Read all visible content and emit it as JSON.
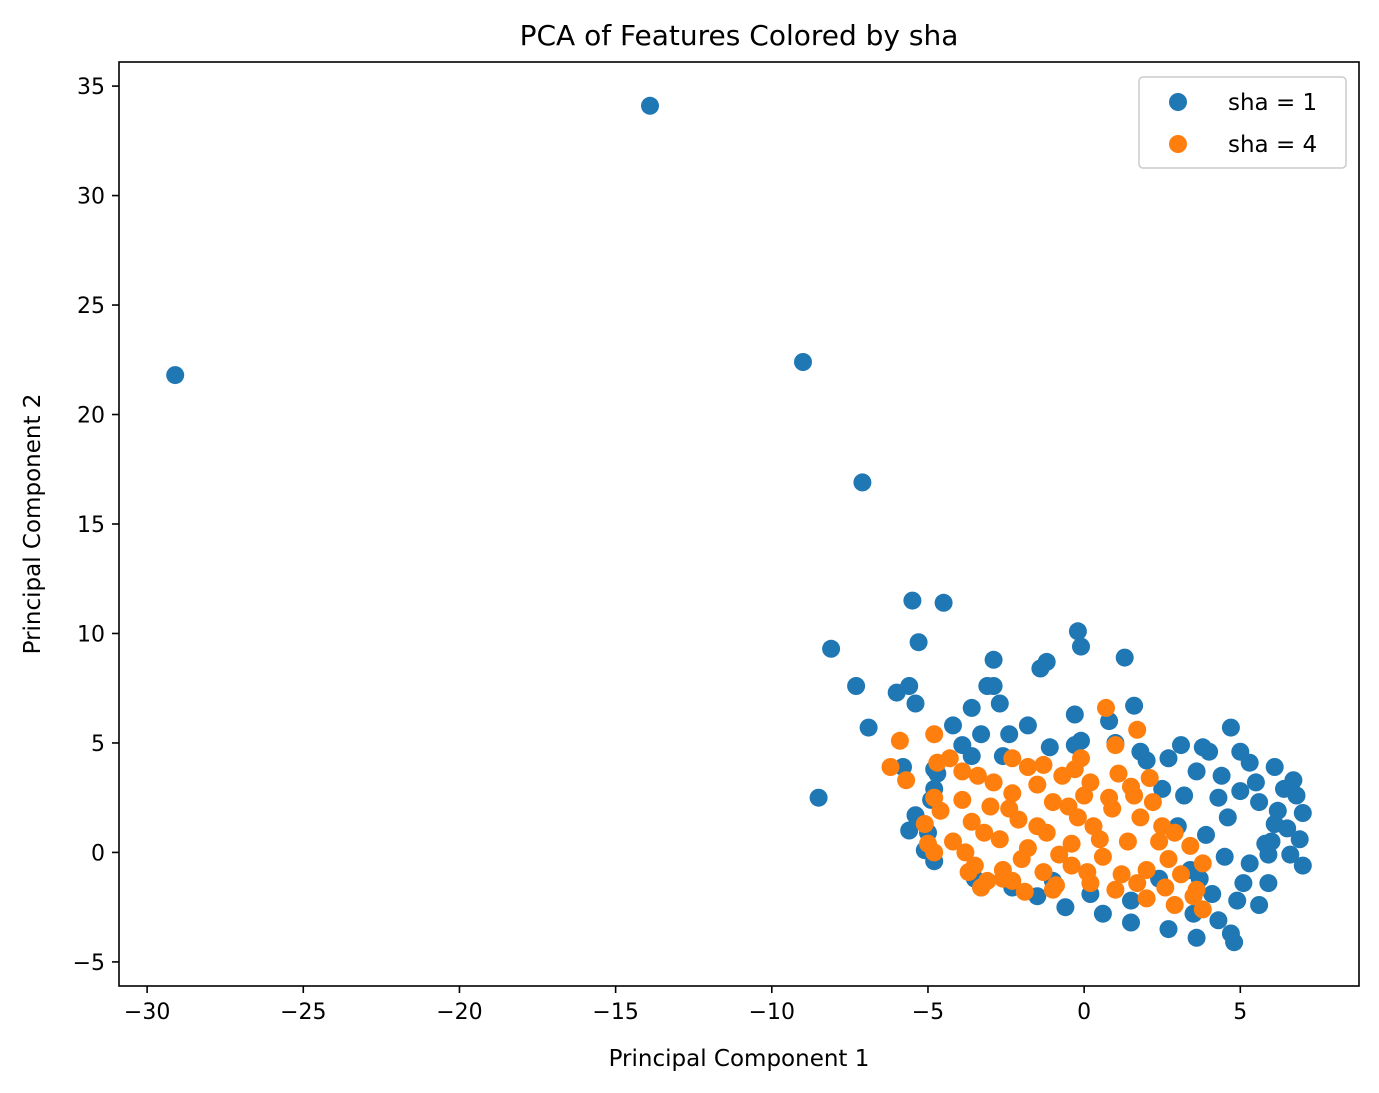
{
  "chart_data": {
    "type": "scatter",
    "title": "PCA of Features Colored by sha",
    "xlabel": "Principal Component 1",
    "ylabel": "Principal Component 2",
    "xlim": [
      -30.9,
      8.8
    ],
    "ylim": [
      -6.1,
      36.1
    ],
    "xticks": [
      -30,
      -25,
      -20,
      -15,
      -10,
      -5,
      0,
      5
    ],
    "yticks": [
      -5,
      0,
      5,
      10,
      15,
      20,
      25,
      30,
      35
    ],
    "grid": false,
    "legend": {
      "placement": "top-right"
    },
    "series": [
      {
        "name": "sha = 1",
        "color": "#1f77b4",
        "points": [
          [
            -13.9,
            34.1
          ],
          [
            -29.1,
            21.8
          ],
          [
            -9.0,
            22.4
          ],
          [
            -7.1,
            16.9
          ],
          [
            -5.5,
            11.5
          ],
          [
            -4.5,
            11.4
          ],
          [
            -0.2,
            10.1
          ],
          [
            -5.3,
            9.6
          ],
          [
            -8.1,
            9.3
          ],
          [
            -0.1,
            9.4
          ],
          [
            -2.9,
            8.8
          ],
          [
            1.3,
            8.9
          ],
          [
            -1.2,
            8.7
          ],
          [
            -1.4,
            8.4
          ],
          [
            -7.3,
            7.6
          ],
          [
            -5.6,
            7.6
          ],
          [
            -3.1,
            7.6
          ],
          [
            -2.9,
            7.6
          ],
          [
            -6.0,
            7.3
          ],
          [
            -5.4,
            6.8
          ],
          [
            -2.7,
            6.8
          ],
          [
            -3.6,
            6.6
          ],
          [
            0.8,
            6.0
          ],
          [
            1.6,
            6.7
          ],
          [
            -6.9,
            5.7
          ],
          [
            -4.2,
            5.8
          ],
          [
            -1.8,
            5.8
          ],
          [
            -0.3,
            6.3
          ],
          [
            4.7,
            5.7
          ],
          [
            -3.3,
            5.4
          ],
          [
            -2.4,
            5.4
          ],
          [
            -3.9,
            4.9
          ],
          [
            -3.6,
            4.4
          ],
          [
            -0.1,
            5.1
          ],
          [
            -0.3,
            4.9
          ],
          [
            -1.1,
            4.8
          ],
          [
            -5.8,
            3.9
          ],
          [
            -4.8,
            3.8
          ],
          [
            -4.7,
            3.6
          ],
          [
            -2.6,
            4.4
          ],
          [
            4.0,
            4.6
          ],
          [
            5.0,
            4.6
          ],
          [
            3.8,
            4.8
          ],
          [
            6.1,
            3.9
          ],
          [
            5.3,
            4.1
          ],
          [
            6.7,
            3.3
          ],
          [
            6.8,
            2.6
          ],
          [
            -4.8,
            2.9
          ],
          [
            -4.9,
            2.4
          ],
          [
            -5.4,
            1.7
          ],
          [
            -8.5,
            2.5
          ],
          [
            -5.0,
            0.9
          ],
          [
            -5.6,
            1.0
          ],
          [
            -5.1,
            0.1
          ],
          [
            -4.8,
            -0.4
          ],
          [
            -3.5,
            -1.2
          ],
          [
            -3.3,
            -1.6
          ],
          [
            6.1,
            1.3
          ],
          [
            7.0,
            1.8
          ],
          [
            6.9,
            0.6
          ],
          [
            6.6,
            -0.1
          ],
          [
            7.0,
            -0.6
          ],
          [
            5.9,
            -0.1
          ],
          [
            5.6,
            -2.4
          ],
          [
            5.9,
            -1.4
          ],
          [
            4.7,
            -3.7
          ],
          [
            4.8,
            -4.1
          ],
          [
            3.6,
            -3.9
          ],
          [
            2.7,
            -3.5
          ],
          [
            1.5,
            -3.2
          ],
          [
            0.6,
            -2.8
          ],
          [
            -0.6,
            -2.5
          ],
          [
            -1.5,
            -2.0
          ],
          [
            -2.3,
            -1.6
          ],
          [
            3.5,
            -2.8
          ],
          [
            4.3,
            -3.1
          ],
          [
            2.0,
            4.2
          ],
          [
            2.7,
            4.3
          ],
          [
            3.1,
            4.9
          ],
          [
            3.6,
            3.7
          ],
          [
            4.4,
            3.5
          ],
          [
            5.0,
            2.8
          ],
          [
            5.6,
            2.3
          ],
          [
            6.2,
            1.9
          ],
          [
            6.0,
            0.5
          ],
          [
            5.3,
            -0.5
          ],
          [
            5.1,
            -1.4
          ],
          [
            4.9,
            -2.2
          ],
          [
            4.1,
            -1.9
          ],
          [
            3.4,
            -0.8
          ],
          [
            3.9,
            0.8
          ],
          [
            4.6,
            1.6
          ],
          [
            3.2,
            2.6
          ],
          [
            2.5,
            2.9
          ],
          [
            1.8,
            4.6
          ],
          [
            1.0,
            5.0
          ],
          [
            4.3,
            2.5
          ],
          [
            3.0,
            1.2
          ],
          [
            2.4,
            -1.2
          ],
          [
            1.5,
            -2.2
          ],
          [
            0.2,
            -1.9
          ],
          [
            -1.0,
            -1.3
          ],
          [
            5.5,
            3.2
          ],
          [
            6.4,
            2.9
          ],
          [
            6.5,
            1.1
          ],
          [
            5.8,
            0.4
          ],
          [
            4.5,
            -0.2
          ],
          [
            3.7,
            -1.2
          ]
        ]
      },
      {
        "name": "sha = 4",
        "color": "#ff7f0e",
        "points": [
          [
            0.7,
            6.6
          ],
          [
            1.7,
            5.6
          ],
          [
            -4.8,
            5.4
          ],
          [
            -5.9,
            5.1
          ],
          [
            -6.2,
            3.9
          ],
          [
            -5.7,
            3.3
          ],
          [
            -4.7,
            4.1
          ],
          [
            -4.3,
            4.3
          ],
          [
            -3.9,
            3.7
          ],
          [
            -3.4,
            3.5
          ],
          [
            -2.3,
            4.3
          ],
          [
            -0.1,
            4.3
          ],
          [
            1.0,
            4.9
          ],
          [
            -4.8,
            2.5
          ],
          [
            -4.6,
            1.9
          ],
          [
            -5.1,
            1.3
          ],
          [
            -5.0,
            0.4
          ],
          [
            -4.8,
            0.0
          ],
          [
            -4.2,
            0.5
          ],
          [
            -3.8,
            0.0
          ],
          [
            -3.5,
            -0.6
          ],
          [
            -3.1,
            -1.3
          ],
          [
            -3.3,
            -1.6
          ],
          [
            -2.6,
            -1.2
          ],
          [
            -1.9,
            -1.8
          ],
          [
            -1.0,
            -1.7
          ],
          [
            0.2,
            -1.4
          ],
          [
            1.0,
            -1.7
          ],
          [
            2.0,
            -2.1
          ],
          [
            2.9,
            -2.4
          ],
          [
            3.8,
            -2.6
          ],
          [
            3.5,
            -2.0
          ],
          [
            3.6,
            -1.7
          ],
          [
            3.8,
            -0.5
          ],
          [
            3.4,
            0.3
          ],
          [
            2.5,
            1.2
          ],
          [
            2.2,
            2.3
          ],
          [
            1.5,
            3.0
          ],
          [
            0.8,
            2.5
          ],
          [
            0.2,
            3.2
          ],
          [
            -0.7,
            3.5
          ],
          [
            -1.5,
            3.1
          ],
          [
            -2.3,
            2.7
          ],
          [
            -3.0,
            2.1
          ],
          [
            -3.6,
            1.4
          ],
          [
            -3.9,
            2.4
          ],
          [
            -2.9,
            3.2
          ],
          [
            -1.8,
            3.9
          ],
          [
            -0.5,
            2.1
          ],
          [
            0.3,
            1.2
          ],
          [
            -0.4,
            0.4
          ],
          [
            -1.2,
            0.9
          ],
          [
            -2.1,
            1.5
          ],
          [
            -2.7,
            0.6
          ],
          [
            -2.0,
            -0.3
          ],
          [
            -1.3,
            -0.9
          ],
          [
            -0.4,
            -0.6
          ],
          [
            0.6,
            -0.2
          ],
          [
            1.4,
            0.5
          ],
          [
            2.0,
            -0.8
          ],
          [
            1.2,
            -1.0
          ],
          [
            2.7,
            -0.3
          ],
          [
            2.9,
            0.9
          ],
          [
            1.8,
            1.6
          ],
          [
            0.9,
            2.0
          ],
          [
            -0.2,
            1.6
          ],
          [
            -1.0,
            2.3
          ],
          [
            -1.8,
            0.2
          ],
          [
            -2.6,
            -0.8
          ],
          [
            -3.2,
            0.9
          ],
          [
            -3.7,
            -0.9
          ],
          [
            1.7,
            -1.4
          ],
          [
            2.4,
            0.5
          ],
          [
            0.5,
            0.6
          ],
          [
            -0.8,
            -0.1
          ],
          [
            -1.5,
            1.2
          ],
          [
            -2.4,
            2.0
          ],
          [
            0.0,
            2.6
          ],
          [
            1.1,
            3.6
          ],
          [
            2.1,
            3.4
          ],
          [
            -0.3,
            3.8
          ],
          [
            -1.3,
            4.0
          ],
          [
            2.6,
            -1.6
          ],
          [
            3.1,
            -1.0
          ],
          [
            0.1,
            -0.9
          ],
          [
            -0.9,
            -1.5
          ],
          [
            -2.3,
            -1.3
          ],
          [
            1.6,
            2.6
          ]
        ]
      }
    ]
  }
}
